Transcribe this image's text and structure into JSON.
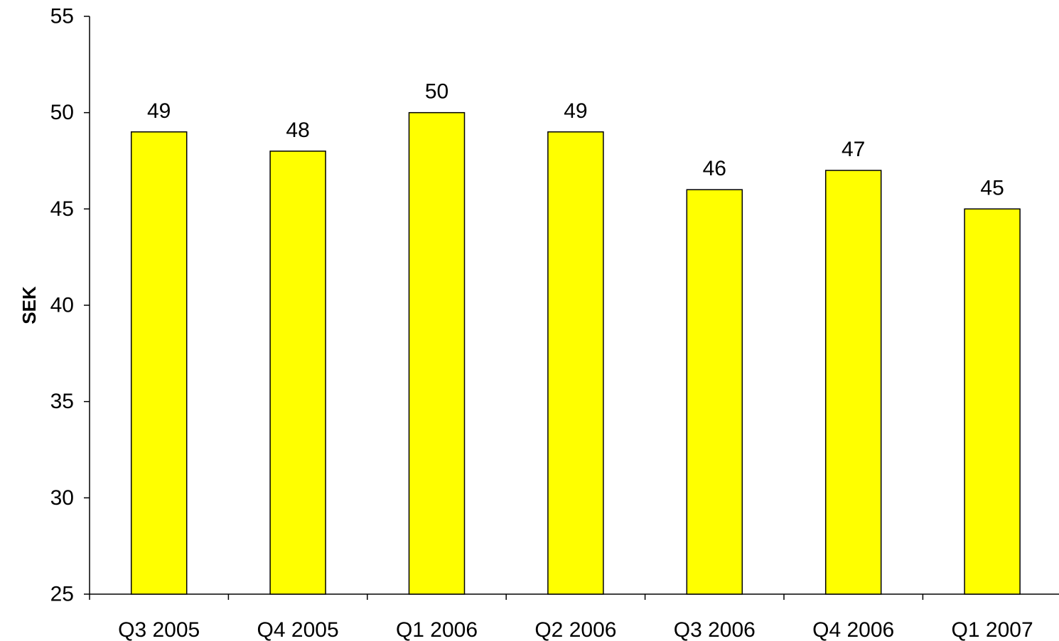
{
  "chart_data": {
    "type": "bar",
    "title": "",
    "xlabel": "",
    "ylabel": "SEK",
    "categories": [
      "Q3 2005",
      "Q4 2005",
      "Q1 2006",
      "Q2 2006",
      "Q3 2006",
      "Q4 2006",
      "Q1 2007"
    ],
    "values": [
      49,
      48,
      50,
      49,
      46,
      47,
      45
    ],
    "data_labels": [
      "49",
      "48",
      "50",
      "49",
      "46",
      "47",
      "45"
    ],
    "ylim": [
      25,
      55
    ],
    "yticks": [
      25,
      30,
      35,
      40,
      45,
      50,
      55
    ],
    "grid": false,
    "legend": "none",
    "colors": {
      "bar_fill": "#ffff00",
      "bar_stroke": "#000000",
      "axis": "#000000"
    }
  }
}
